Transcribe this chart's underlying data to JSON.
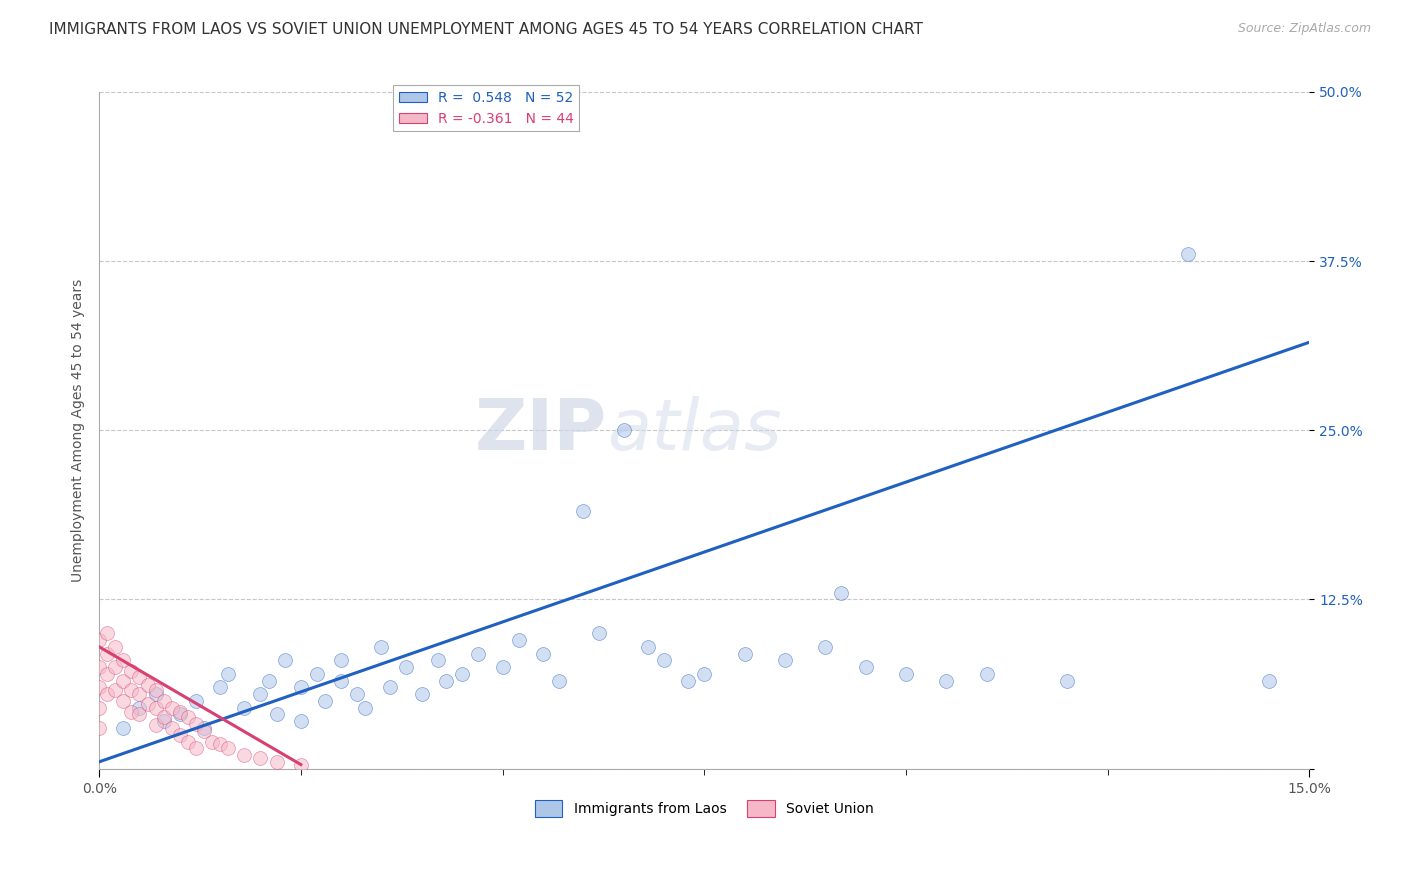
{
  "title": "IMMIGRANTS FROM LAOS VS SOVIET UNION UNEMPLOYMENT AMONG AGES 45 TO 54 YEARS CORRELATION CHART",
  "source": "Source: ZipAtlas.com",
  "ylabel": "Unemployment Among Ages 45 to 54 years",
  "xmin": 0.0,
  "xmax": 0.15,
  "ymin": 0.0,
  "ymax": 0.5,
  "yticks": [
    0.0,
    0.125,
    0.25,
    0.375,
    0.5
  ],
  "ytick_labels": [
    "",
    "12.5%",
    "25.0%",
    "37.5%",
    "50.0%"
  ],
  "xtick_labels": [
    "0.0%",
    "15.0%"
  ],
  "legend_blue_r": "R =  0.548",
  "legend_blue_n": "N = 52",
  "legend_pink_r": "R = -0.361",
  "legend_pink_n": "N = 44",
  "series1_label": "Immigrants from Laos",
  "series2_label": "Soviet Union",
  "blue_color": "#aec6e8",
  "blue_line_color": "#2060c0",
  "pink_color": "#f5b8c8",
  "pink_line_color": "#d84070",
  "watermark_zip": "ZIP",
  "watermark_atlas": "atlas",
  "background_color": "#ffffff",
  "grid_color": "#c8c8c8",
  "blue_scatter_x": [
    0.003,
    0.005,
    0.007,
    0.008,
    0.01,
    0.012,
    0.013,
    0.015,
    0.016,
    0.018,
    0.02,
    0.021,
    0.022,
    0.023,
    0.025,
    0.025,
    0.027,
    0.028,
    0.03,
    0.03,
    0.032,
    0.033,
    0.035,
    0.036,
    0.038,
    0.04,
    0.042,
    0.043,
    0.045,
    0.047,
    0.05,
    0.052,
    0.055,
    0.057,
    0.06,
    0.062,
    0.065,
    0.068,
    0.07,
    0.073,
    0.075,
    0.08,
    0.085,
    0.09,
    0.092,
    0.095,
    0.1,
    0.105,
    0.11,
    0.12,
    0.135,
    0.145
  ],
  "blue_scatter_y": [
    0.03,
    0.045,
    0.055,
    0.035,
    0.04,
    0.05,
    0.03,
    0.06,
    0.07,
    0.045,
    0.055,
    0.065,
    0.04,
    0.08,
    0.06,
    0.035,
    0.07,
    0.05,
    0.065,
    0.08,
    0.055,
    0.045,
    0.09,
    0.06,
    0.075,
    0.055,
    0.08,
    0.065,
    0.07,
    0.085,
    0.075,
    0.095,
    0.085,
    0.065,
    0.19,
    0.1,
    0.25,
    0.09,
    0.08,
    0.065,
    0.07,
    0.085,
    0.08,
    0.09,
    0.13,
    0.075,
    0.07,
    0.065,
    0.07,
    0.065,
    0.38,
    0.065
  ],
  "pink_scatter_x": [
    0.0,
    0.0,
    0.0,
    0.0,
    0.0,
    0.001,
    0.001,
    0.001,
    0.001,
    0.002,
    0.002,
    0.002,
    0.003,
    0.003,
    0.003,
    0.004,
    0.004,
    0.004,
    0.005,
    0.005,
    0.005,
    0.006,
    0.006,
    0.007,
    0.007,
    0.007,
    0.008,
    0.008,
    0.009,
    0.009,
    0.01,
    0.01,
    0.011,
    0.011,
    0.012,
    0.012,
    0.013,
    0.014,
    0.015,
    0.016,
    0.018,
    0.02,
    0.022,
    0.025
  ],
  "pink_scatter_y": [
    0.095,
    0.075,
    0.06,
    0.045,
    0.03,
    0.1,
    0.085,
    0.07,
    0.055,
    0.09,
    0.075,
    0.058,
    0.08,
    0.065,
    0.05,
    0.072,
    0.058,
    0.042,
    0.068,
    0.055,
    0.04,
    0.062,
    0.048,
    0.058,
    0.045,
    0.032,
    0.05,
    0.038,
    0.045,
    0.03,
    0.042,
    0.025,
    0.038,
    0.02,
    0.033,
    0.015,
    0.028,
    0.02,
    0.018,
    0.015,
    0.01,
    0.008,
    0.005,
    0.003
  ],
  "blue_trend_x": [
    0.0,
    0.15
  ],
  "blue_trend_y": [
    0.005,
    0.315
  ],
  "pink_trend_x": [
    0.0,
    0.025
  ],
  "pink_trend_y": [
    0.09,
    0.003
  ],
  "title_fontsize": 11,
  "source_fontsize": 9,
  "axis_label_fontsize": 10,
  "tick_fontsize": 10,
  "legend_fontsize": 10,
  "scatter_size": 100,
  "scatter_alpha": 0.55,
  "line_width": 2.2
}
